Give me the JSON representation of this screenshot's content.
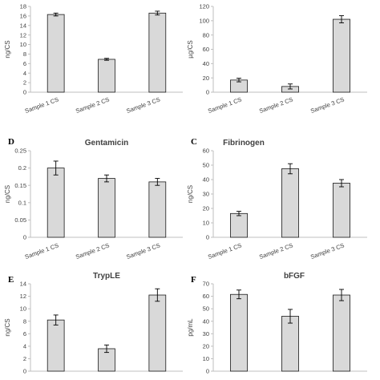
{
  "figure": {
    "colors": {
      "bar_fill": "#d9d9d9",
      "bar_stroke": "#1a1a1a",
      "axis": "#bfbfbf",
      "text": "#404040"
    }
  },
  "chart_data": [
    {
      "panel_label": "",
      "type": "bar",
      "title": "",
      "ylabel": "ng/CS",
      "xlabel": "",
      "categories": [
        "Sample 1 CS",
        "Sample 2 CS",
        "Sample 3 CS"
      ],
      "values": [
        16.3,
        6.9,
        16.6
      ],
      "errors": [
        0.3,
        0.2,
        0.4
      ],
      "ylim": [
        0,
        18
      ],
      "yticks": [
        0,
        2,
        4,
        6,
        8,
        10,
        12,
        14,
        16,
        18
      ],
      "grid": false
    },
    {
      "panel_label": "",
      "type": "bar",
      "title": "",
      "ylabel": "µg/CS",
      "xlabel": "",
      "categories": [
        "Sample 1 CS",
        "Sample 2 CS",
        "Sample 3 CS"
      ],
      "values": [
        17,
        8,
        102
      ],
      "errors": [
        2.5,
        3.5,
        5
      ],
      "ylim": [
        0,
        120
      ],
      "yticks": [
        0,
        20,
        40,
        60,
        80,
        100,
        120
      ],
      "grid": false
    },
    {
      "panel_label": "D",
      "type": "bar",
      "title": "Gentamicin",
      "ylabel": "ng/CS",
      "xlabel": "",
      "categories": [
        "Sample 1 CS",
        "Sample 2 CS",
        "Sample 3 CS"
      ],
      "values": [
        0.2,
        0.17,
        0.16
      ],
      "errors": [
        0.02,
        0.01,
        0.01
      ],
      "ylim": [
        0,
        0.25
      ],
      "yticks": [
        0,
        0.05,
        0.1,
        0.15,
        0.2,
        0.25
      ],
      "grid": false
    },
    {
      "panel_label": "C",
      "type": "bar",
      "title": "Fibrinogen",
      "ylabel": "ng/CS",
      "xlabel": "",
      "categories": [
        "Sample 1 CS",
        "Sample 2 CS",
        "Sample 3 CS"
      ],
      "values": [
        16.5,
        47.5,
        37.5
      ],
      "errors": [
        1.5,
        3.5,
        2.5
      ],
      "ylim": [
        0,
        60
      ],
      "yticks": [
        0,
        10,
        20,
        30,
        40,
        50,
        60
      ],
      "grid": false
    },
    {
      "panel_label": "E",
      "type": "bar",
      "title": "TrypLE",
      "ylabel": "ng/CS",
      "xlabel": "",
      "categories": [
        "",
        "",
        ""
      ],
      "values": [
        8.2,
        3.6,
        12.2
      ],
      "errors": [
        0.8,
        0.6,
        1.0
      ],
      "ylim": [
        0,
        14
      ],
      "yticks": [
        0,
        2,
        4,
        6,
        8,
        10,
        12,
        14
      ],
      "grid": false
    },
    {
      "panel_label": "F",
      "type": "bar",
      "title": "bFGF",
      "ylabel": "pg/mL",
      "xlabel": "",
      "categories": [
        "",
        "",
        ""
      ],
      "values": [
        61.5,
        44,
        61
      ],
      "errors": [
        3.5,
        5.5,
        4.5
      ],
      "ylim": [
        0,
        70
      ],
      "yticks": [
        0,
        10,
        20,
        30,
        40,
        50,
        60,
        70
      ],
      "grid": false
    }
  ]
}
